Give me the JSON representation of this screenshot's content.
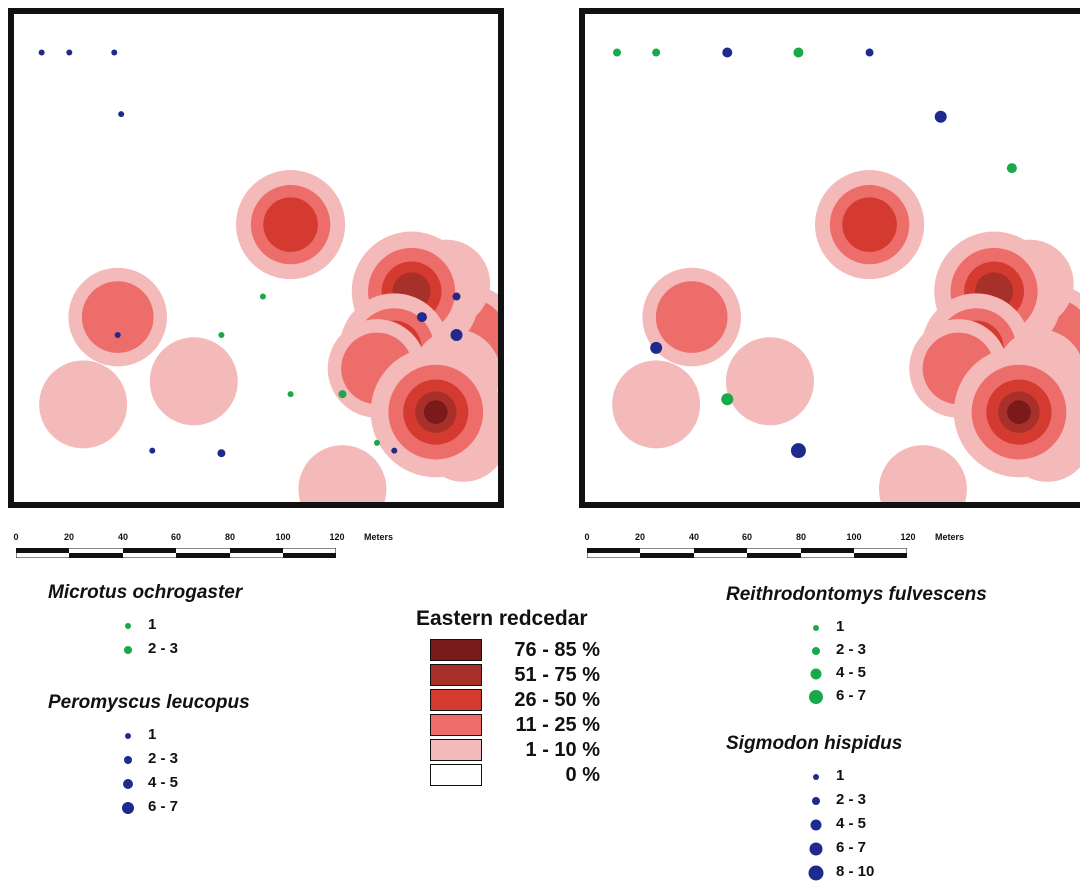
{
  "colors": {
    "green_dot": "#19a84a",
    "blue_dot": "#1f2a8f",
    "border": "#111111"
  },
  "scale": {
    "ticks": [
      "0",
      "20",
      "40",
      "60",
      "80",
      "100",
      "120"
    ],
    "unit": "Meters"
  },
  "cedar_legend": {
    "title": "Eastern redcedar",
    "classes": [
      {
        "label": "76 - 85 %",
        "color": "#7a1a1a"
      },
      {
        "label": "51 - 75 %",
        "color": "#a8302b"
      },
      {
        "label": "26 - 50 %",
        "color": "#d43a2f"
      },
      {
        "label": "11 - 25 %",
        "color": "#ed6d6a"
      },
      {
        "label": "1 - 10 %",
        "color": "#f4b9b9"
      },
      {
        "label": "0 %",
        "color": "#ffffff"
      }
    ]
  },
  "left_legends": [
    {
      "species": "Microtus ochrogaster",
      "color": "#19a84a",
      "classes": [
        {
          "label": "1",
          "size": 6
        },
        {
          "label": "2 - 3",
          "size": 8
        }
      ]
    },
    {
      "species": "Peromyscus leucopus",
      "color": "#1f2a8f",
      "classes": [
        {
          "label": "1",
          "size": 6
        },
        {
          "label": "2 - 3",
          "size": 8
        },
        {
          "label": "4 - 5",
          "size": 10
        },
        {
          "label": "6 - 7",
          "size": 12
        }
      ]
    }
  ],
  "right_legends": [
    {
      "species": "Reithrodontomys fulvescens",
      "color": "#19a84a",
      "classes": [
        {
          "label": "1",
          "size": 6
        },
        {
          "label": "2 - 3",
          "size": 8
        },
        {
          "label": "4 - 5",
          "size": 11
        },
        {
          "label": "6 - 7",
          "size": 14
        }
      ]
    },
    {
      "species": "Sigmodon hispidus",
      "color": "#1f2a8f",
      "classes": [
        {
          "label": "1",
          "size": 6
        },
        {
          "label": "2 - 3",
          "size": 8
        },
        {
          "label": "4 - 5",
          "size": 11
        },
        {
          "label": "6 - 7",
          "size": 13
        },
        {
          "label": "8 - 10",
          "size": 15
        }
      ]
    }
  ],
  "cedar_patches": [
    {
      "x": 80,
      "y": 82,
      "level": 3
    },
    {
      "x": 132,
      "y": 125,
      "level": 4
    },
    {
      "x": 52,
      "y": 143,
      "level": 5
    },
    {
      "x": 95,
      "y": 185,
      "level": 5
    },
    {
      "x": 20,
      "y": 152,
      "level": 5
    },
    {
      "x": 125,
      "y": 105,
      "level": 5
    },
    {
      "x": 120,
      "y": 112,
      "level": 4
    },
    {
      "x": 115,
      "y": 108,
      "level": 2
    },
    {
      "x": 110,
      "y": 130,
      "level": 3
    },
    {
      "x": 105,
      "y": 138,
      "level": 4
    },
    {
      "x": 130,
      "y": 165,
      "level": 5
    },
    {
      "x": 128,
      "y": 140,
      "level": 5
    },
    {
      "x": 122,
      "y": 155,
      "level": 1
    },
    {
      "x": 30,
      "y": 118,
      "level": 4
    }
  ],
  "points_left": [
    {
      "x": 8,
      "y": 15,
      "species": "peromyscus",
      "class": 1
    },
    {
      "x": 16,
      "y": 15,
      "species": "peromyscus",
      "class": 1
    },
    {
      "x": 29,
      "y": 15,
      "species": "peromyscus",
      "class": 1
    },
    {
      "x": 31,
      "y": 39,
      "species": "peromyscus",
      "class": 1
    },
    {
      "x": 40,
      "y": 170,
      "species": "peromyscus",
      "class": 1
    },
    {
      "x": 60,
      "y": 171,
      "species": "peromyscus",
      "class": 2
    },
    {
      "x": 80,
      "y": 148,
      "species": "microtus",
      "class": 1
    },
    {
      "x": 105,
      "y": 167,
      "species": "microtus",
      "class": 1
    },
    {
      "x": 95,
      "y": 148,
      "species": "microtus",
      "class": 2
    },
    {
      "x": 30,
      "y": 125,
      "species": "peromyscus",
      "class": 1
    },
    {
      "x": 60,
      "y": 125,
      "species": "microtus",
      "class": 1
    },
    {
      "x": 72,
      "y": 110,
      "species": "microtus",
      "class": 1
    },
    {
      "x": 118,
      "y": 118,
      "species": "peromyscus",
      "class": 3
    },
    {
      "x": 128,
      "y": 125,
      "species": "peromyscus",
      "class": 4
    },
    {
      "x": 128,
      "y": 110,
      "species": "peromyscus",
      "class": 2
    },
    {
      "x": 110,
      "y": 170,
      "species": "peromyscus",
      "class": 1
    }
  ],
  "points_right": [
    {
      "x": 9,
      "y": 15,
      "species": "reithrodontomys",
      "class": 2
    },
    {
      "x": 20,
      "y": 15,
      "species": "reithrodontomys",
      "class": 2
    },
    {
      "x": 40,
      "y": 15,
      "species": "sigmodon",
      "class": 3
    },
    {
      "x": 60,
      "y": 15,
      "species": "reithrodontomys",
      "class": 3
    },
    {
      "x": 80,
      "y": 15,
      "species": "sigmodon",
      "class": 2
    },
    {
      "x": 100,
      "y": 40,
      "species": "sigmodon",
      "class": 4
    },
    {
      "x": 120,
      "y": 60,
      "species": "reithrodontomys",
      "class": 3
    },
    {
      "x": 20,
      "y": 130,
      "species": "sigmodon",
      "class": 4
    },
    {
      "x": 40,
      "y": 150,
      "species": "reithrodontomys",
      "class": 4
    },
    {
      "x": 60,
      "y": 170,
      "species": "sigmodon",
      "class": 5
    }
  ]
}
